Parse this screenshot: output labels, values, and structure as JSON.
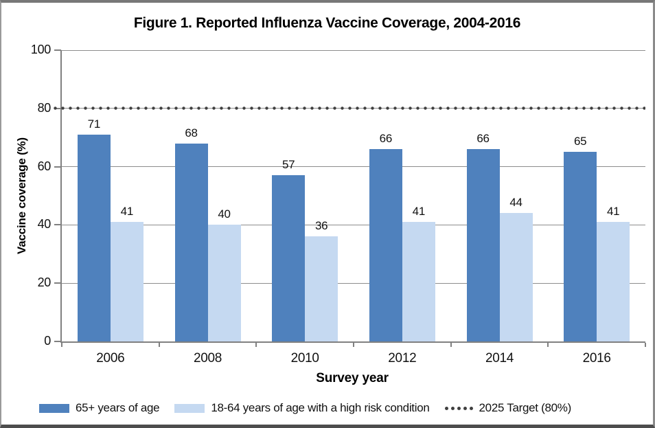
{
  "title": "Figure 1. Reported Influenza Vaccine Coverage, 2004-2016",
  "chart_data": {
    "type": "bar",
    "title": "Figure 1. Reported Influenza Vaccine Coverage, 2004-2016",
    "categories": [
      "2006",
      "2008",
      "2010",
      "2012",
      "2014",
      "2016"
    ],
    "series": [
      {
        "name": "65+ years of age",
        "color": "#4F81BD",
        "values": [
          71,
          68,
          57,
          66,
          66,
          65
        ]
      },
      {
        "name": "18-64 years of age with a high risk condition",
        "color": "#C5D9F1",
        "values": [
          41,
          40,
          36,
          41,
          44,
          41
        ]
      }
    ],
    "target_line": {
      "label": "2025 Target (80%)",
      "value": 80,
      "color": "#3F3F3F"
    },
    "xlabel": "Survey year",
    "ylabel": "Vaccine coverage (%)",
    "ylim": [
      0,
      100
    ],
    "yticks": [
      0,
      20,
      40,
      60,
      80,
      100
    ],
    "grid": true,
    "legend_position": "bottom",
    "data_labels": true
  },
  "colors": {
    "series1": "#4F81BD",
    "series2": "#C5D9F1",
    "target": "#3F3F3F",
    "gridline": "#8C8C8C",
    "axis": "#808080",
    "text": "#111111"
  }
}
